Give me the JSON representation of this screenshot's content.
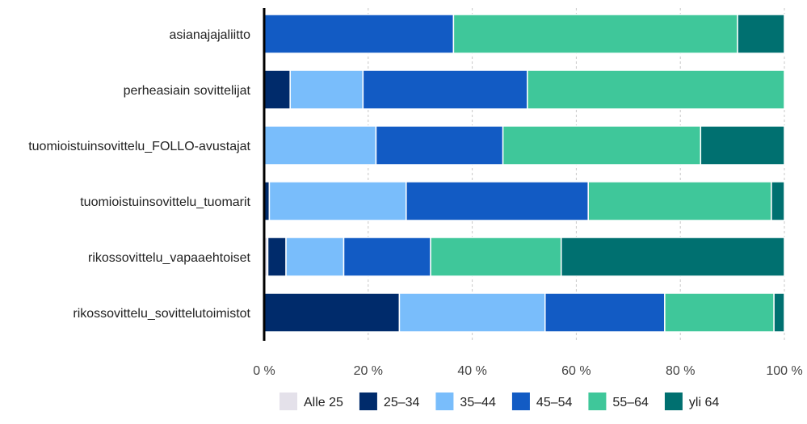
{
  "chart_data": {
    "type": "bar",
    "orientation": "horizontal",
    "stacked": "percent",
    "categories": [
      "asianajajaliitto",
      "perheasiain sovittelijat",
      "tuomioistuinsovittelu_FOLLO-avustajat",
      "tuomioistuinsovittelu_tuomarit",
      "rikossovittelu_vapaaehtoiset",
      "rikossovittelu_sovittelutoimistot"
    ],
    "series": [
      {
        "name": "Alle 25",
        "color": "#e4e1ea",
        "values": [
          0,
          0,
          0,
          0,
          0.7,
          0
        ]
      },
      {
        "name": "25–34",
        "color": "#002b6b",
        "values": [
          0,
          5,
          0,
          1,
          3.5,
          26
        ]
      },
      {
        "name": "35–44",
        "color": "#79bdfb",
        "values": [
          0,
          14,
          21.5,
          26.3,
          11.1,
          28
        ]
      },
      {
        "name": "45–54",
        "color": "#125bc4",
        "values": [
          36.4,
          31.6,
          24.4,
          35,
          16.7,
          23
        ]
      },
      {
        "name": "55–64",
        "color": "#3fc79a",
        "values": [
          54.6,
          49.4,
          38,
          35.2,
          25.1,
          21
        ]
      },
      {
        "name": "yli 64",
        "color": "#007070",
        "values": [
          9,
          0,
          16.1,
          2.5,
          42.9,
          2
        ]
      }
    ],
    "xlim": [
      0,
      100
    ],
    "xticks": [
      "0 %",
      "20 %",
      "40 %",
      "60 %",
      "80 %",
      "100 %"
    ],
    "xtick_values": [
      0,
      20,
      40,
      60,
      80,
      100
    ],
    "grid": "vertical dashed",
    "legend_position": "bottom"
  }
}
